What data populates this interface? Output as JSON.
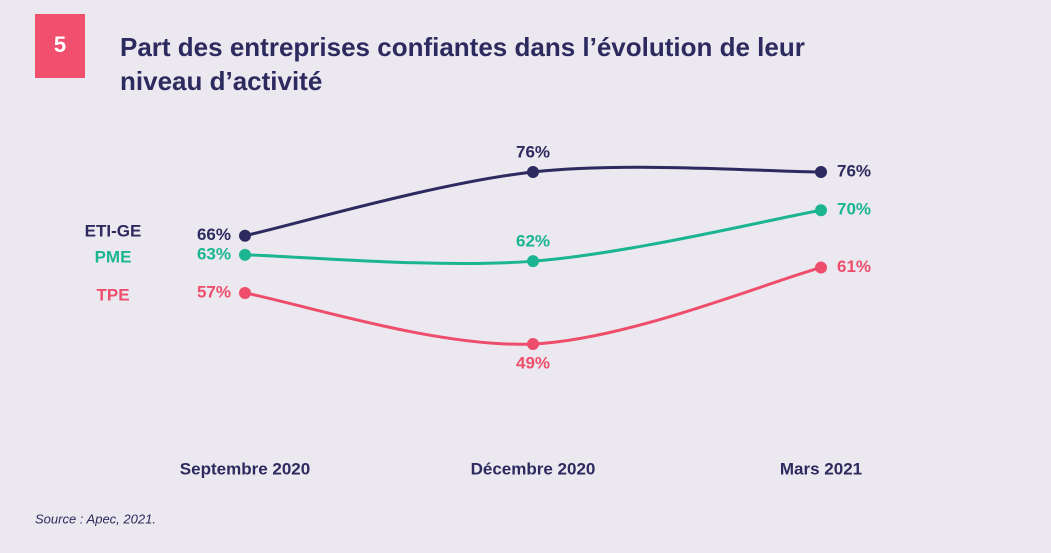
{
  "chart_data": {
    "type": "line",
    "number": "5",
    "title": "Part des entreprises confiantes dans l’évolution de leur niveau d’activité",
    "source": "Source : Apec, 2021.",
    "categories": [
      "Septembre 2020",
      "Décembre 2020",
      "Mars 2021"
    ],
    "series": [
      {
        "name": "ETI-GE",
        "color": "#2d2a5f",
        "values": [
          66,
          76,
          76
        ],
        "value_labels": [
          "66%",
          "76%",
          "76%"
        ]
      },
      {
        "name": "PME",
        "color": "#1bb592",
        "values": [
          63,
          62,
          70
        ],
        "value_labels": [
          "63%",
          "62%",
          "70%"
        ]
      },
      {
        "name": "TPE",
        "color": "#ee4d6c",
        "values": [
          57,
          49,
          61
        ],
        "value_labels": [
          "57%",
          "49%",
          "61%"
        ]
      }
    ]
  }
}
